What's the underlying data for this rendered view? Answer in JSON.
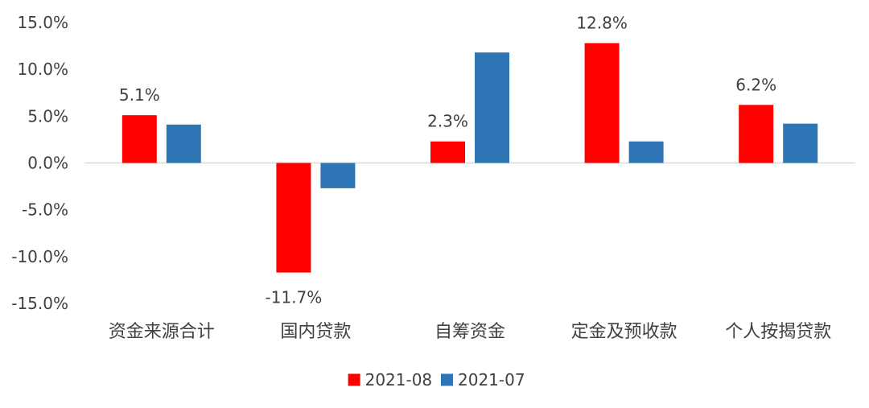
{
  "chart_data": {
    "type": "bar",
    "title": "",
    "xlabel": "",
    "ylabel": "",
    "categories": [
      "资金来源合计",
      "国内贷款",
      "自筹资金",
      "定金及预收款",
      "个人按揭贷款"
    ],
    "series": [
      {
        "name": "2021-08",
        "color": "#FF0000",
        "values": [
          5.1,
          -11.7,
          2.3,
          12.8,
          6.2
        ],
        "labels": [
          "5.1%",
          "-11.7%",
          "2.3%",
          "12.8%",
          "6.2%"
        ]
      },
      {
        "name": "2021-07",
        "color": "#2E75B6",
        "values": [
          4.1,
          -2.7,
          11.8,
          2.3,
          4.2
        ]
      }
    ],
    "ylim": [
      -15,
      15
    ],
    "yticks": [
      15,
      10,
      5,
      0,
      -5,
      -10,
      -15
    ],
    "ytick_labels": [
      "15.0%",
      "10.0%",
      "5.0%",
      "0.0%",
      "-5.0%",
      "-10.0%",
      "-15.0%"
    ],
    "grid": false,
    "legend_position": "bottom-center"
  }
}
